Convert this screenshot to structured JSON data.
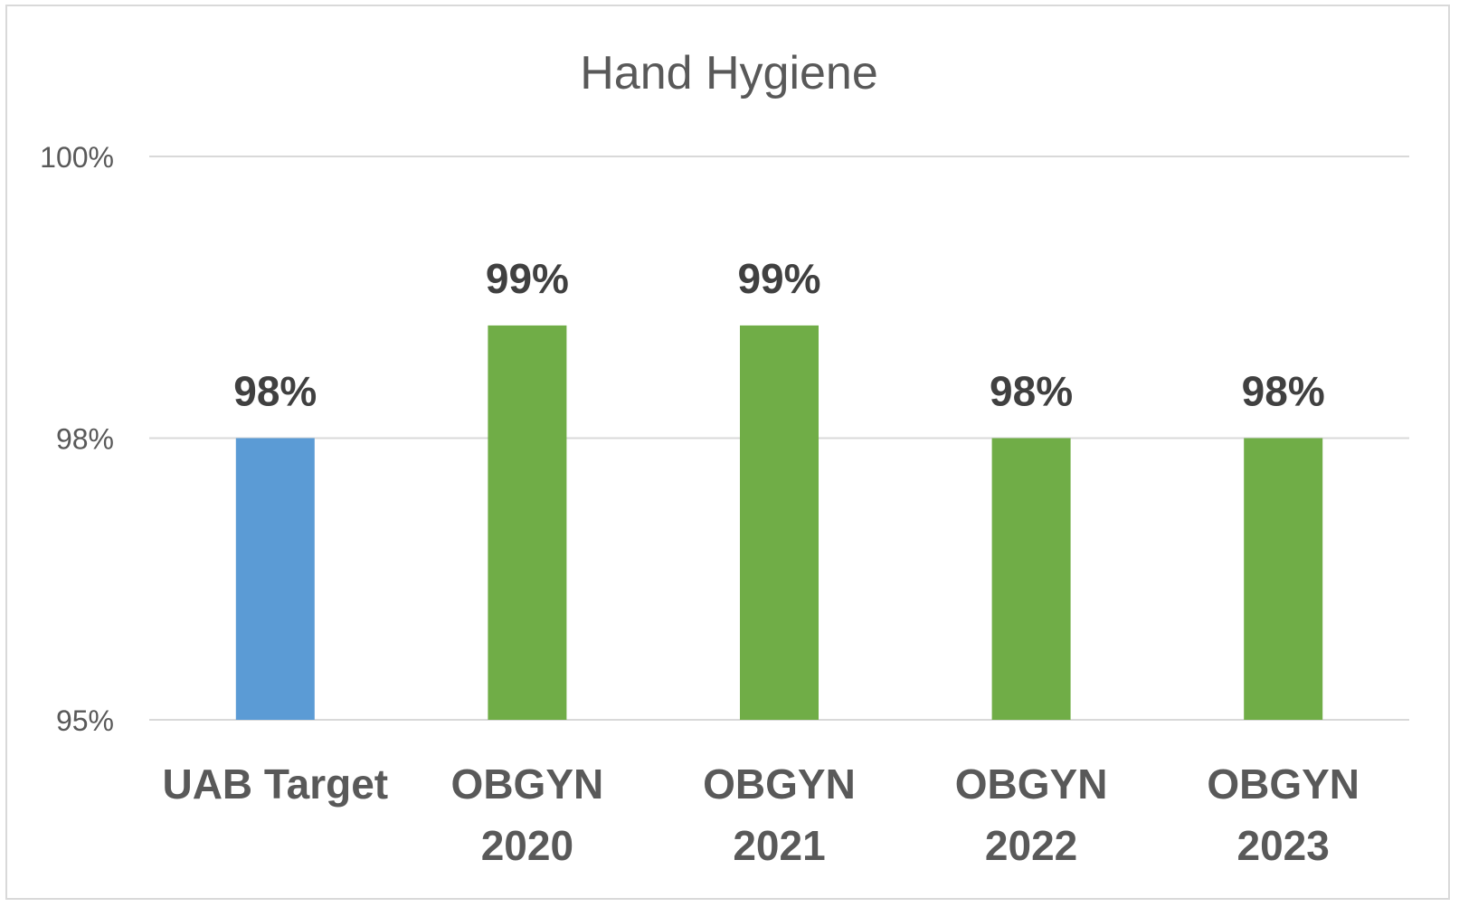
{
  "chart_data": {
    "type": "bar",
    "title": "Hand Hygiene",
    "xlabel": "",
    "ylabel": "",
    "categories": [
      [
        "UAB Target"
      ],
      [
        "OBGYN",
        "2020"
      ],
      [
        "OBGYN",
        "2021"
      ],
      [
        "OBGYN",
        "2022"
      ],
      [
        "OBGYN",
        "2023"
      ]
    ],
    "values": [
      97.5,
      98.5,
      98.5,
      97.5,
      97.5
    ],
    "data_labels": [
      "98%",
      "99%",
      "99%",
      "98%",
      "98%"
    ],
    "bar_colors": [
      "#5b9bd5",
      "#70ad47",
      "#70ad47",
      "#70ad47",
      "#70ad47"
    ],
    "ylim": [
      95,
      100
    ],
    "y_ticks": [
      {
        "value": 95,
        "label": "95%"
      },
      {
        "value": 97.5,
        "label": "98%"
      },
      {
        "value": 100,
        "label": "100%"
      }
    ],
    "grid": true,
    "legend": "none",
    "gridline_color": "#d9d9d9"
  }
}
